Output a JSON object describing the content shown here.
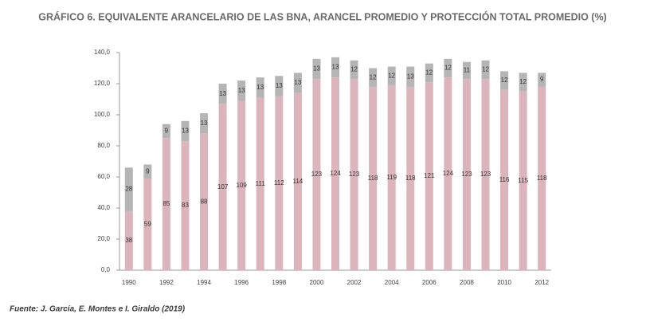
{
  "chart_data": {
    "type": "stacked_bar",
    "title": "GRÁFICO 6. EQUIVALENTE ARANCELARIO DE LAS BNA, ARANCEL PROMEDIO Y PROTECCIÓN TOTAL PROMEDIO (%)",
    "source": "Fuente: J. García, E. Montes e I. Giraldo (2019)",
    "categories": [
      "1990",
      null,
      "1992",
      null,
      "1994",
      null,
      "1996",
      null,
      "1998",
      null,
      "2000",
      null,
      "2002",
      null,
      "2004",
      null,
      "2006",
      null,
      "2008",
      null,
      "2010",
      null,
      "2012"
    ],
    "series": [
      {
        "color": "#dcb4bb",
        "values": [
          38,
          59,
          85,
          83,
          88,
          107,
          109,
          111,
          112,
          114,
          123,
          124,
          123,
          118,
          119,
          118,
          121,
          124,
          123,
          123,
          116,
          115,
          118
        ]
      },
      {
        "color": "#b5b5b5",
        "values": [
          28,
          9,
          9,
          13,
          13,
          13,
          13,
          13,
          13,
          13,
          13,
          13,
          12,
          12,
          12,
          13,
          12,
          12,
          11,
          12,
          12,
          12,
          9
        ]
      }
    ],
    "ylim": [
      0,
      140
    ],
    "yticks": [
      {
        "value": 0,
        "label": "0,0"
      },
      {
        "value": 20,
        "label": "20,0"
      },
      {
        "value": 40,
        "label": "40,0"
      },
      {
        "value": 60,
        "label": "60,0"
      },
      {
        "value": 80,
        "label": "80,0"
      },
      {
        "value": 100,
        "label": "100,0"
      },
      {
        "value": 120,
        "label": "120,0"
      },
      {
        "value": 140,
        "label": "140,0"
      }
    ]
  }
}
